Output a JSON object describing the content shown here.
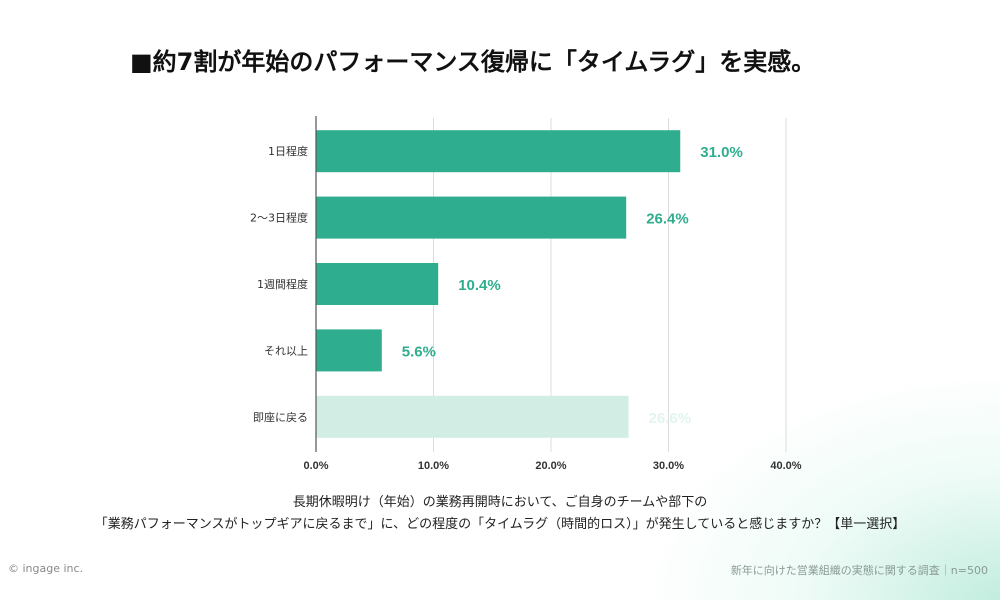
{
  "title": "■約7割が年始のパフォーマンス復帰に「タイムラグ」を実感。",
  "chart_data": {
    "type": "bar",
    "orientation": "horizontal",
    "categories": [
      "1日程度",
      "2〜3日程度",
      "1週間程度",
      "それ以上",
      "即座に戻る"
    ],
    "values": [
      31.0,
      26.4,
      10.4,
      5.6,
      26.6
    ],
    "value_labels": [
      "31.0%",
      "26.4%",
      "10.4%",
      "5.6%",
      "26.6%"
    ],
    "xlim": [
      0,
      40
    ],
    "x_ticks": [
      "0.0%",
      "10.0%",
      "20.0%",
      "30.0%",
      "40.0%"
    ],
    "x_tick_values": [
      0,
      10,
      20,
      30,
      40
    ],
    "grid": true,
    "bar_colors": [
      "#2fae8f",
      "#2fae8f",
      "#2fae8f",
      "#2fae8f",
      "#d2eee4"
    ],
    "label_colors": [
      "#2fae8f",
      "#2fae8f",
      "#2fae8f",
      "#2fae8f",
      "#e3f4ee"
    ]
  },
  "question": {
    "line1": "長期休暇明け（年始）の業務再開時において、ご自身のチームや部下の",
    "line2": "「業務パフォーマンスがトップギアに戻るまで」に、どの程度の「タイムラグ（時間的ロス）」が発生していると感じますか？【単一選択】"
  },
  "footer": {
    "copyright": "© ingage inc.",
    "survey": "新年に向けた営業組織の実態に関する調査｜n=500"
  }
}
